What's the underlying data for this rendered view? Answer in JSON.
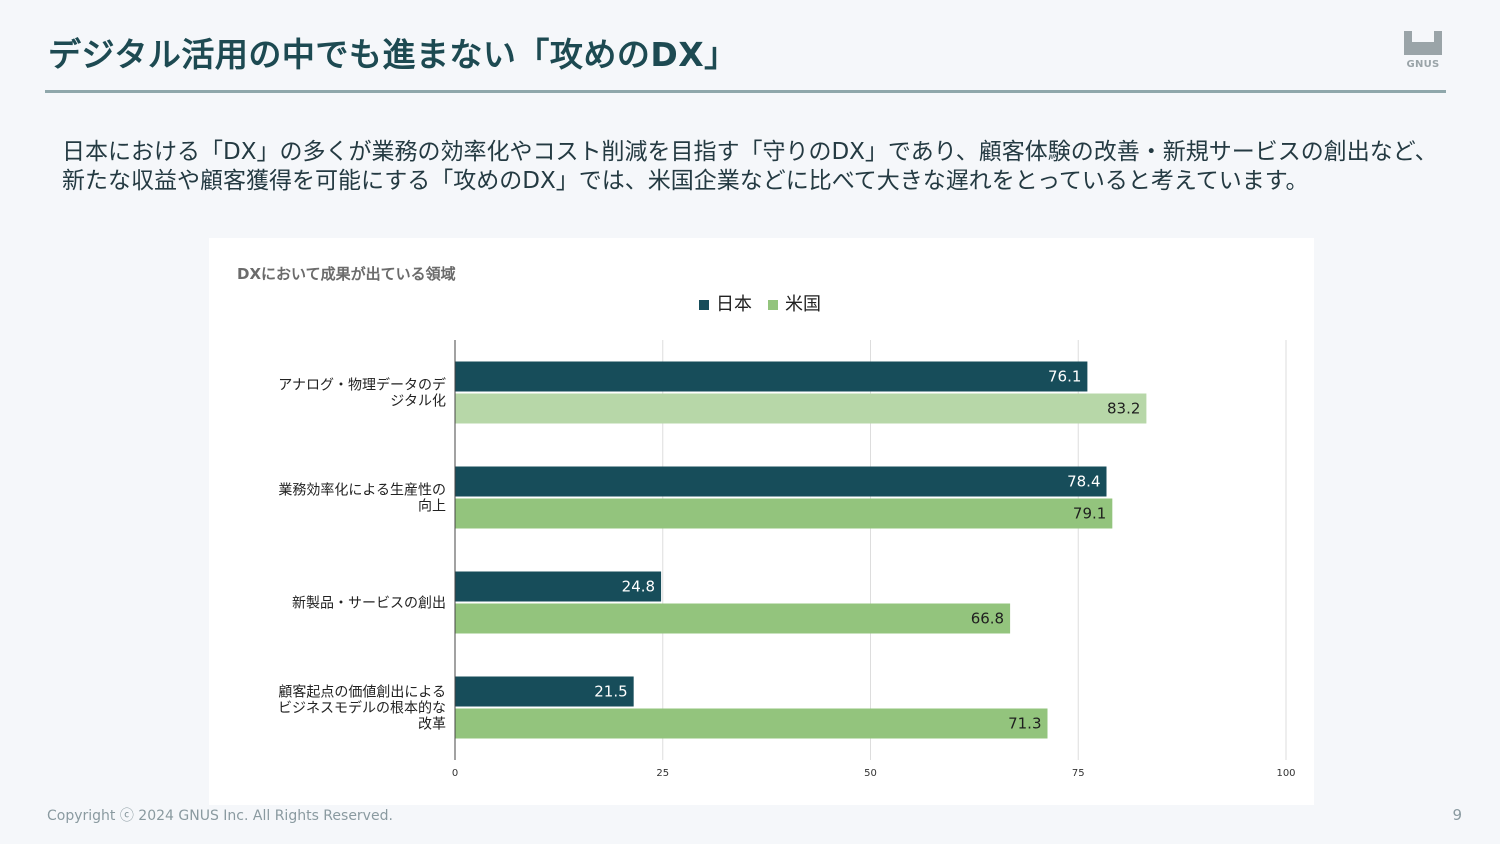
{
  "header": {
    "title": "デジタル活用の中でも進まない「攻めのDX」",
    "logo_text": "GNUS"
  },
  "lead": "日本における「DX」の多くが業務の効率化やコスト削減を目指す「守りのDX」であり、顧客体験の改善・新規サービスの創出など、新たな収益や顧客獲得を可能にする「攻めのDX」では、米国企業などに比べて大きな遅れをとっていると考えています。",
  "footer": {
    "copyright": "Copyright ⓒ 2024 GNUS Inc. All Rights Reserved.",
    "page_number": "9"
  },
  "chart_data": {
    "type": "bar",
    "orientation": "horizontal",
    "title": "DXにおいて成果が出ている領域",
    "legend_position": "top-center",
    "grid": true,
    "categories": [
      [
        "アナログ・物理データのデ",
        "ジタル化"
      ],
      [
        "業務効率化による生産性の",
        "向上"
      ],
      [
        "新製品・サービスの創出"
      ],
      [
        "顧客起点の価値創出による",
        "ビジネスモデルの根本的な",
        "改革"
      ]
    ],
    "series": [
      {
        "name": "日本",
        "color": "#174d5a",
        "values": [
          76.1,
          78.4,
          24.8,
          21.5
        ]
      },
      {
        "name": "米国",
        "color": "#93c47d",
        "values": [
          83.2,
          79.1,
          66.8,
          71.3
        ]
      }
    ],
    "highlight": {
      "series_index": 1,
      "category_index": 0,
      "color": "#b7d7a8"
    },
    "xlim": [
      0,
      100
    ],
    "xticks": [
      0,
      25,
      50,
      75,
      100
    ]
  }
}
